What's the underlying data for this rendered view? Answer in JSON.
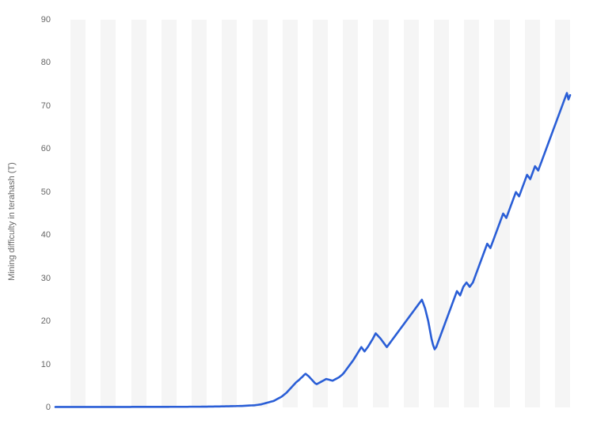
{
  "chart": {
    "type": "line",
    "y_axis_title": "Mining difficulty in terahash (T)",
    "background_color": "#ffffff",
    "band_color_a": "#ffffff",
    "band_color_b": "#f5f5f5",
    "tick_label_color": "#666666",
    "tick_label_fontsize": 11,
    "axis_title_fontsize": 11,
    "line_color": "#2a5ed6",
    "line_width": 2.6,
    "ylim": [
      0,
      90
    ],
    "ytick_step": 10,
    "yticks": [
      0,
      10,
      20,
      30,
      40,
      50,
      60,
      70,
      80,
      90
    ],
    "num_bands": 34,
    "values": [
      0.1,
      0.1,
      0.1,
      0.1,
      0.1,
      0.1,
      0.1,
      0.1,
      0.1,
      0.1,
      0.1,
      0.1,
      0.1,
      0.1,
      0.1,
      0.1,
      0.1,
      0.1,
      0.1,
      0.1,
      0.1,
      0.1,
      0.1,
      0.1,
      0.1,
      0.1,
      0.1,
      0.1,
      0.1,
      0.1,
      0.1,
      0.1,
      0.1,
      0.1,
      0.1,
      0.1,
      0.1,
      0.1,
      0.1,
      0.1,
      0.1,
      0.1,
      0.1,
      0.1,
      0.1,
      0.1,
      0.1,
      0.1,
      0.12,
      0.12,
      0.12,
      0.12,
      0.12,
      0.12,
      0.12,
      0.12,
      0.12,
      0.12,
      0.12,
      0.12,
      0.12,
      0.12,
      0.12,
      0.12,
      0.12,
      0.12,
      0.12,
      0.12,
      0.12,
      0.12,
      0.12,
      0.12,
      0.14,
      0.14,
      0.14,
      0.14,
      0.14,
      0.14,
      0.14,
      0.14,
      0.14,
      0.14,
      0.14,
      0.14,
      0.16,
      0.16,
      0.16,
      0.16,
      0.16,
      0.16,
      0.16,
      0.16,
      0.18,
      0.18,
      0.18,
      0.18,
      0.2,
      0.2,
      0.2,
      0.2,
      0.22,
      0.22,
      0.22,
      0.22,
      0.24,
      0.24,
      0.24,
      0.26,
      0.26,
      0.26,
      0.28,
      0.28,
      0.3,
      0.3,
      0.32,
      0.32,
      0.34,
      0.34,
      0.36,
      0.38,
      0.4,
      0.42,
      0.44,
      0.46,
      0.48,
      0.5,
      0.55,
      0.6,
      0.65,
      0.7,
      0.8,
      0.9,
      1.0,
      1.1,
      1.2,
      1.3,
      1.4,
      1.5,
      1.7,
      1.9,
      2.1,
      2.3,
      2.5,
      2.8,
      3.1,
      3.4,
      3.8,
      4.2,
      4.6,
      5.0,
      5.4,
      5.8,
      6.1,
      6.4,
      6.8,
      7.1,
      7.5,
      7.8,
      7.5,
      7.2,
      6.8,
      6.4,
      6.0,
      5.6,
      5.4,
      5.6,
      5.8,
      6.0,
      6.2,
      6.4,
      6.6,
      6.5,
      6.4,
      6.3,
      6.2,
      6.4,
      6.6,
      6.8,
      7.0,
      7.3,
      7.6,
      8.0,
      8.5,
      9.0,
      9.5,
      10.0,
      10.5,
      11.0,
      11.6,
      12.2,
      12.8,
      13.4,
      14.0,
      13.5,
      13.0,
      13.5,
      14.0,
      14.6,
      15.2,
      15.8,
      16.5,
      17.2,
      16.8,
      16.4,
      16.0,
      15.5,
      15.0,
      14.5,
      14.0,
      14.5,
      15.0,
      15.5,
      16.0,
      16.5,
      17.0,
      17.5,
      18.0,
      18.5,
      19.0,
      19.5,
      20.0,
      20.5,
      21.0,
      21.5,
      22.0,
      22.5,
      23.0,
      23.5,
      24.0,
      24.5,
      25.0,
      24.0,
      23.0,
      21.5,
      20.0,
      18.0,
      16.0,
      14.5,
      13.5,
      14.0,
      15.0,
      16.0,
      17.0,
      18.0,
      19.0,
      20.0,
      21.0,
      22.0,
      23.0,
      24.0,
      25.0,
      26.0,
      27.0,
      26.5,
      26.0,
      27.0,
      28.0,
      28.5,
      29.0,
      28.5,
      28.0,
      28.5,
      29.0,
      30.0,
      31.0,
      32.0,
      33.0,
      34.0,
      35.0,
      36.0,
      37.0,
      38.0,
      37.5,
      37.0,
      38.0,
      39.0,
      40.0,
      41.0,
      42.0,
      43.0,
      44.0,
      45.0,
      44.5,
      44.0,
      45.0,
      46.0,
      47.0,
      48.0,
      49.0,
      50.0,
      49.5,
      49.0,
      50.0,
      51.0,
      52.0,
      53.0,
      54.0,
      53.5,
      53.0,
      54.0,
      55.0,
      56.0,
      55.5,
      55.0,
      56.0,
      57.0,
      58.0,
      59.0,
      60.0,
      61.0,
      62.0,
      63.0,
      64.0,
      65.0,
      66.0,
      67.0,
      68.0,
      69.0,
      70.0,
      71.0,
      72.0,
      73.0,
      71.5,
      72.5
    ]
  }
}
